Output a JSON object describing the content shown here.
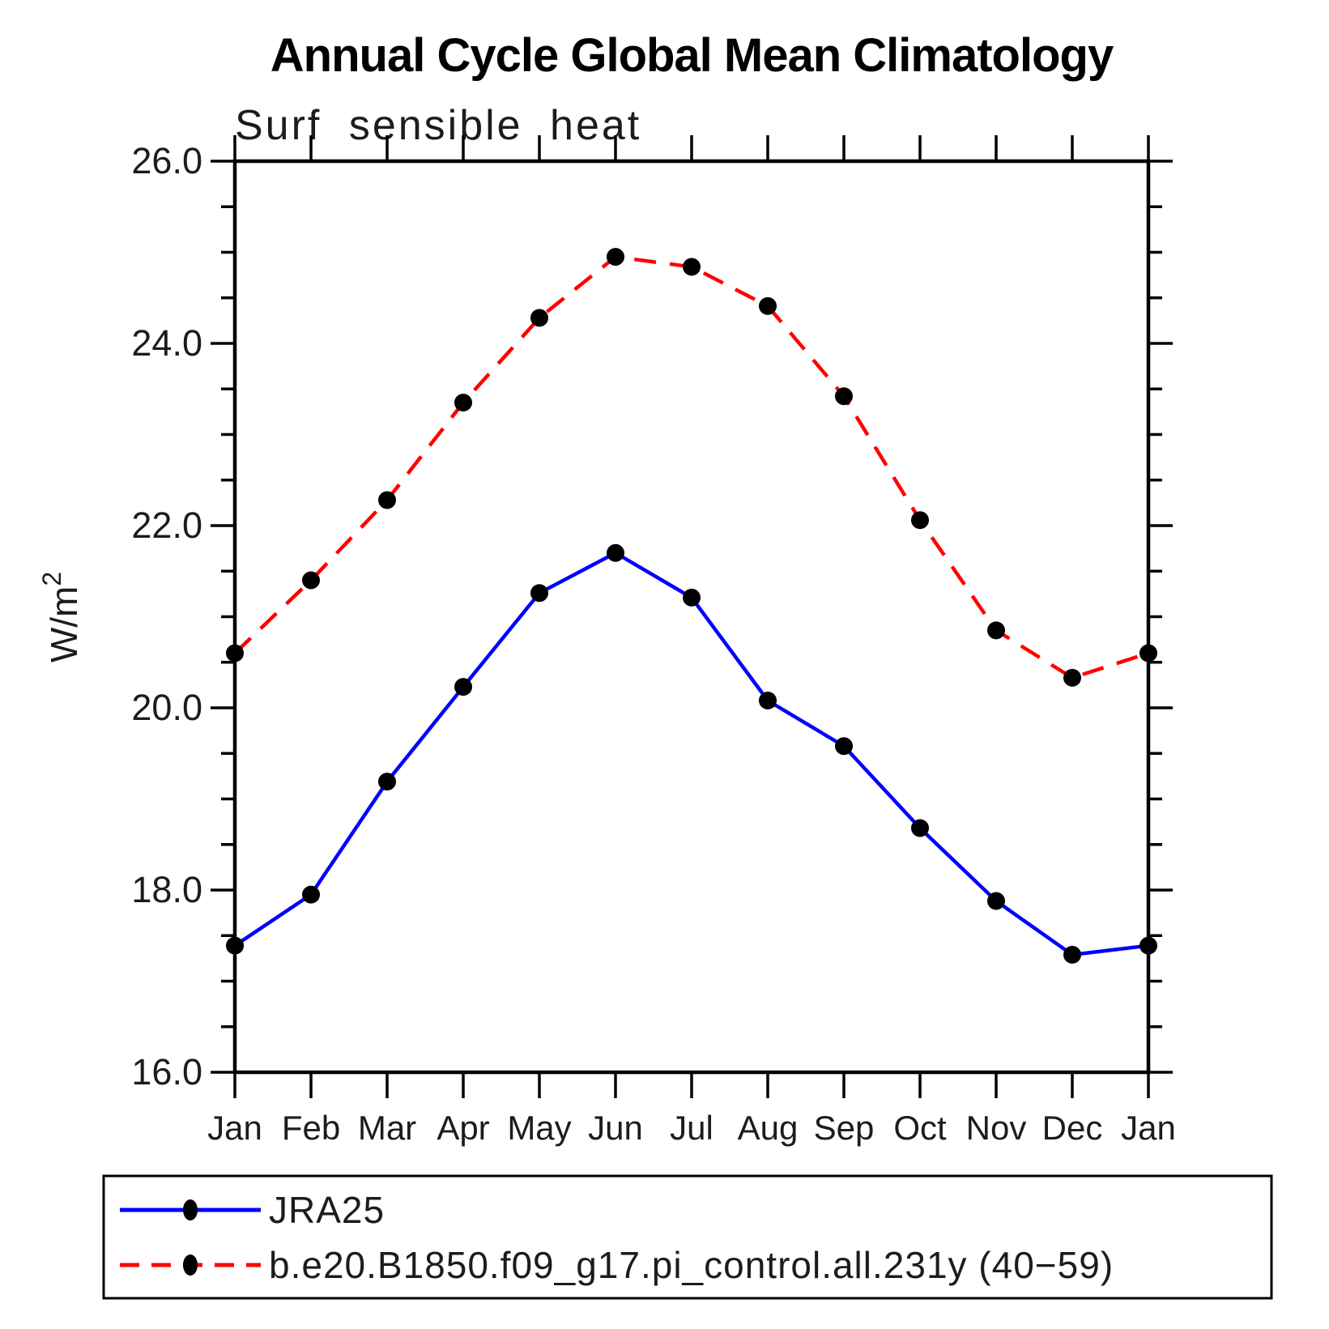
{
  "header": {
    "title": "Annual Cycle Global Mean Climatology",
    "subtitle": "Surf sensible heat"
  },
  "chart_data": {
    "type": "line",
    "title": "Annual Cycle Global Mean Climatology",
    "subtitle": "Surf sensible heat",
    "ylabel": "W/m^2",
    "ylabel_base": "W/m",
    "ylabel_exponent": "2",
    "xlabel": "",
    "x_tick_labels": [
      "Jan",
      "Feb",
      "Mar",
      "Apr",
      "May",
      "Jun",
      "Jul",
      "Aug",
      "Sep",
      "Oct",
      "Nov",
      "Dec",
      "Jan"
    ],
    "y_tick_labels": [
      "16.0",
      "18.0",
      "20.0",
      "22.0",
      "24.0",
      "26.0"
    ],
    "ylim": [
      16.0,
      26.0
    ],
    "y_major_step": 2.0,
    "y_minor_step": 0.5,
    "grid": false,
    "legend_position": "bottom",
    "marker_color": "#000000",
    "series": [
      {
        "name": "JRA25",
        "color": "#0000ff",
        "style": "solid",
        "marker": "filled-circle",
        "values": [
          17.39,
          17.95,
          19.19,
          20.23,
          21.26,
          21.7,
          21.21,
          20.08,
          19.58,
          18.68,
          17.88,
          17.29,
          17.39
        ]
      },
      {
        "name": "b.e20.B1850.f09_g17.pi_control.all.231y (40−59)",
        "color": "#ff0000",
        "style": "dashed",
        "marker": "filled-circle",
        "values": [
          20.6,
          21.4,
          22.28,
          23.35,
          24.28,
          24.95,
          24.84,
          24.41,
          23.42,
          22.06,
          20.85,
          20.33,
          20.6
        ]
      }
    ]
  }
}
